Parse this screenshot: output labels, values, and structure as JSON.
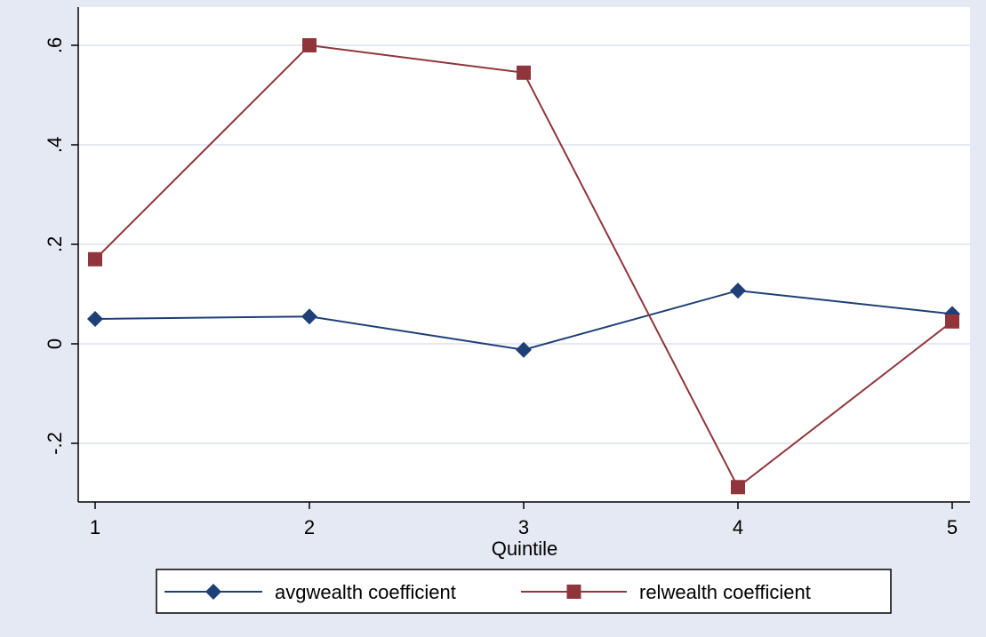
{
  "chart_data": {
    "type": "line",
    "title": "",
    "xlabel": "Quintile",
    "ylabel": "",
    "x": [
      1,
      2,
      3,
      4,
      5
    ],
    "xlim": [
      1,
      5
    ],
    "ylim": [
      -0.3,
      0.6
    ],
    "x_ticks": [
      "1",
      "2",
      "3",
      "4",
      "5"
    ],
    "y_ticks": [
      {
        "value": -0.2,
        "label": "-.2"
      },
      {
        "value": 0,
        "label": "0"
      },
      {
        "value": 0.2,
        "label": ".2"
      },
      {
        "value": 0.4,
        "label": ".4"
      },
      {
        "value": 0.6,
        "label": ".6"
      }
    ],
    "grid": true,
    "legend_position": "bottom",
    "series": [
      {
        "name": "avgwealth coefficient",
        "values": [
          0.05,
          0.055,
          -0.012,
          0.107,
          0.06
        ],
        "color": "#1f3f77",
        "marker": "diamond"
      },
      {
        "name": "relwealth coefficient",
        "values": [
          0.17,
          0.6,
          0.545,
          -0.288,
          0.045
        ],
        "color": "#90353b",
        "marker": "square"
      }
    ]
  },
  "colors": {
    "outer_background": "#e5e9f3",
    "plot_background": "#ffffff",
    "gridline": "#e5e9f3"
  }
}
